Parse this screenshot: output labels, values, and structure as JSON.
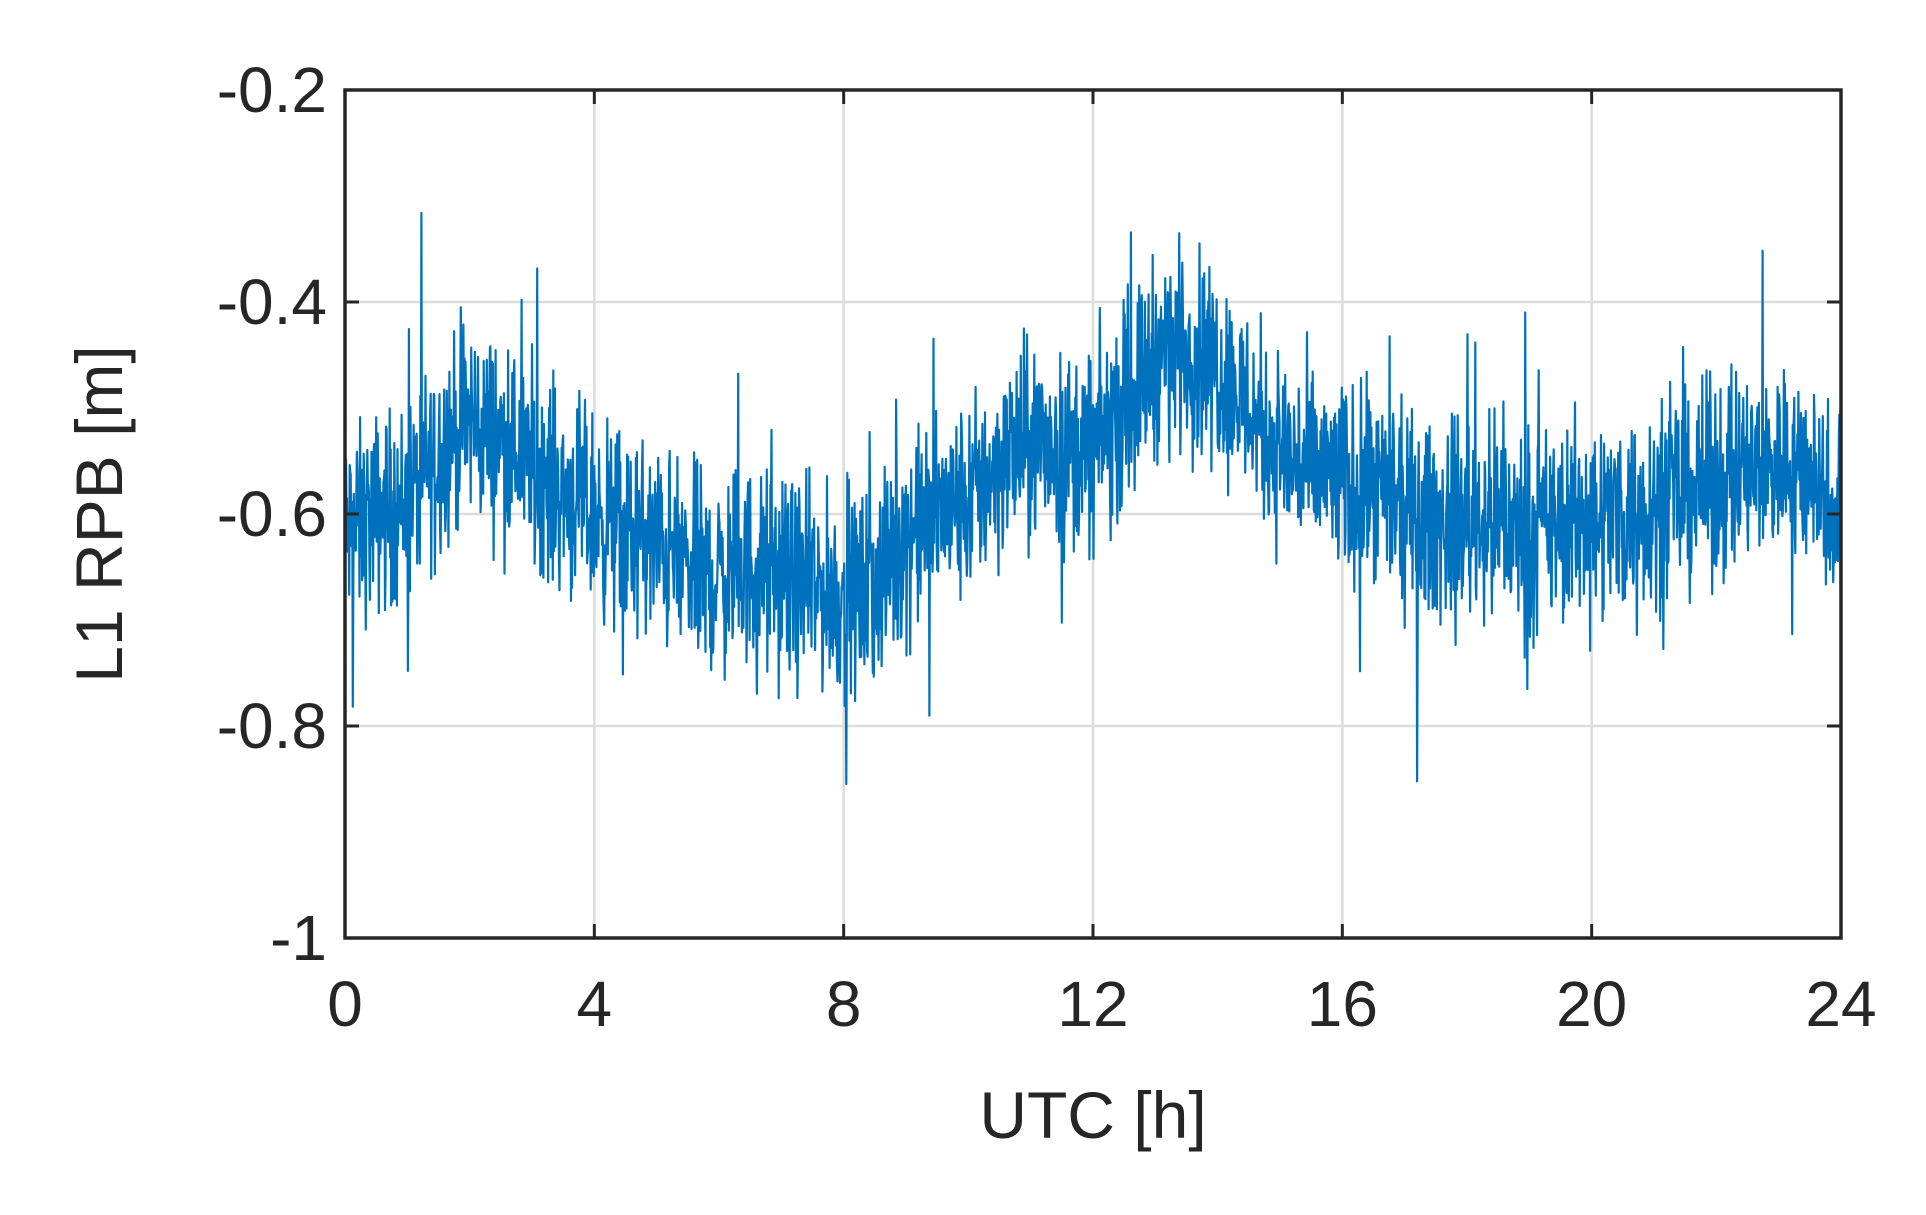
{
  "chart_data": {
    "type": "line",
    "title": "",
    "xlabel": "UTC [h]",
    "ylabel": "L1 RPB [m]",
    "xlim": [
      0,
      24
    ],
    "ylim": [
      -1,
      -0.2
    ],
    "xticks": [
      0,
      4,
      8,
      12,
      16,
      20,
      24
    ],
    "xtick_labels": [
      "0",
      "4",
      "8",
      "12",
      "16",
      "20",
      "24"
    ],
    "yticks": [
      -1,
      -0.8,
      -0.6,
      -0.4,
      -0.2
    ],
    "ytick_labels": [
      "-1",
      "-0.8",
      "-0.6",
      "-0.4",
      "-0.2"
    ],
    "grid": true,
    "legend": "none",
    "series_color": "#0072BD",
    "series": [
      {
        "x": [
          0,
          0.5,
          1,
          1.5,
          2,
          2.5,
          3,
          3.5,
          4,
          4.5,
          5,
          5.5,
          6,
          6.5,
          7,
          7.5,
          8,
          8.5,
          9,
          9.5,
          10,
          10.5,
          11,
          11.5,
          12,
          12.5,
          13,
          13.5,
          14,
          14.5,
          15,
          15.5,
          16,
          16.5,
          17,
          17.5,
          18,
          18.5,
          19,
          19.5,
          20,
          20.5,
          21,
          21.5,
          22,
          22.5,
          23,
          23.5,
          24
        ],
        "values": [
          -0.62,
          -0.6,
          -0.59,
          -0.54,
          -0.51,
          -0.53,
          -0.55,
          -0.58,
          -0.6,
          -0.62,
          -0.63,
          -0.65,
          -0.66,
          -0.65,
          -0.66,
          -0.67,
          -0.68,
          -0.67,
          -0.62,
          -0.6,
          -0.59,
          -0.55,
          -0.53,
          -0.54,
          -0.54,
          -0.5,
          -0.45,
          -0.44,
          -0.46,
          -0.5,
          -0.54,
          -0.56,
          -0.57,
          -0.58,
          -0.6,
          -0.61,
          -0.6,
          -0.61,
          -0.62,
          -0.61,
          -0.6,
          -0.6,
          -0.59,
          -0.58,
          -0.57,
          -0.56,
          -0.55,
          -0.56,
          -0.6
        ]
      }
    ],
    "noise_amplitude": 0.07
  }
}
